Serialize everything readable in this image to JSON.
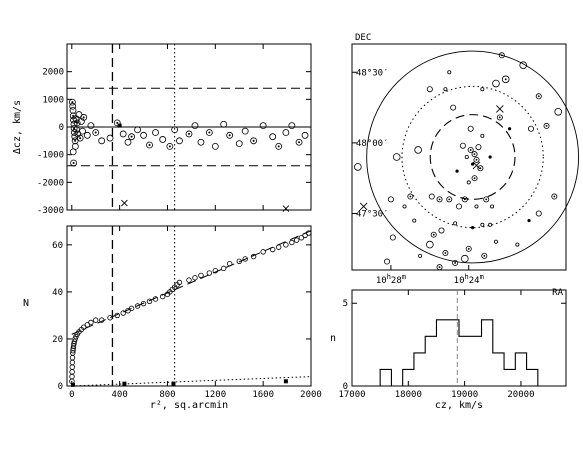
{
  "chart_data": [
    {
      "panel": "velocity-offset-vs-radius",
      "type": "scatter",
      "ylabel": "Δcz, km/s",
      "xlim": [
        -40,
        2000
      ],
      "ylim": [
        -3000,
        3000
      ],
      "y_ticks": [
        "2000",
        "1000",
        "0",
        "-1000",
        "-2000",
        "-3000"
      ],
      "y_tick_values": [
        2000,
        1000,
        0,
        -1000,
        -2000,
        -3000
      ],
      "x_tick_values": [
        0,
        400,
        800,
        1200,
        1600,
        2000
      ],
      "hlines_dashed": [
        1400,
        -1400
      ],
      "hline_solid": 0,
      "vline_dashed": 340,
      "vline_dotted": 860,
      "members": [
        {
          "x": 5,
          "y": 900
        },
        {
          "x": 8,
          "y": 750
        },
        {
          "x": 10,
          "y": 600
        },
        {
          "x": 12,
          "y": 400
        },
        {
          "x": 15,
          "y": 250
        },
        {
          "x": 18,
          "y": 100
        },
        {
          "x": 20,
          "y": -50
        },
        {
          "x": 22,
          "y": -200
        },
        {
          "x": 25,
          "y": -350
        },
        {
          "x": 28,
          "y": -500
        },
        {
          "x": 30,
          "y": -700
        },
        {
          "x": 12,
          "y": -900
        },
        {
          "x": 15,
          "y": -1300
        },
        {
          "x": 35,
          "y": 300
        },
        {
          "x": 40,
          "y": -100
        },
        {
          "x": 45,
          "y": 150
        },
        {
          "x": 50,
          "y": -250
        },
        {
          "x": 60,
          "y": 450
        },
        {
          "x": 70,
          "y": -400
        },
        {
          "x": 80,
          "y": 200
        },
        {
          "x": 90,
          "y": -150
        },
        {
          "x": 100,
          "y": 350
        },
        {
          "x": 130,
          "y": -300
        },
        {
          "x": 160,
          "y": 50
        },
        {
          "x": 200,
          "y": -200
        },
        {
          "x": 250,
          "y": -500
        },
        {
          "x": 320,
          "y": -400
        },
        {
          "x": 380,
          "y": 150
        },
        {
          "x": 430,
          "y": -250
        },
        {
          "x": 470,
          "y": -550
        },
        {
          "x": 500,
          "y": -350
        },
        {
          "x": 550,
          "y": -100
        },
        {
          "x": 600,
          "y": -300
        },
        {
          "x": 650,
          "y": -650
        },
        {
          "x": 700,
          "y": -200
        },
        {
          "x": 760,
          "y": -450
        },
        {
          "x": 820,
          "y": -700
        },
        {
          "x": 860,
          "y": -100
        },
        {
          "x": 900,
          "y": -500
        },
        {
          "x": 980,
          "y": -250
        },
        {
          "x": 1030,
          "y": 50
        },
        {
          "x": 1080,
          "y": -550
        },
        {
          "x": 1150,
          "y": -200
        },
        {
          "x": 1200,
          "y": -700
        },
        {
          "x": 1270,
          "y": 100
        },
        {
          "x": 1320,
          "y": -300
        },
        {
          "x": 1400,
          "y": -600
        },
        {
          "x": 1450,
          "y": -150
        },
        {
          "x": 1520,
          "y": -500
        },
        {
          "x": 1600,
          "y": 50
        },
        {
          "x": 1680,
          "y": -350
        },
        {
          "x": 1730,
          "y": -700
        },
        {
          "x": 1790,
          "y": -200
        },
        {
          "x": 1840,
          "y": 50
        },
        {
          "x": 1900,
          "y": -550
        },
        {
          "x": 1950,
          "y": -300
        }
      ],
      "nonmembers": [
        {
          "x": 440,
          "y": -2750
        },
        {
          "x": 1790,
          "y": -2950
        }
      ],
      "filled_points": [
        {
          "x": 400,
          "y": 50
        }
      ]
    },
    {
      "panel": "cumulative-count-vs-radius",
      "type": "line",
      "xlabel": "r², sq.arcmin",
      "ylabel": "N",
      "xlim": [
        -40,
        2000
      ],
      "ylim": [
        0,
        68
      ],
      "x_ticks": [
        "0",
        "400",
        "800",
        "1200",
        "1600",
        "2000"
      ],
      "x_tick_values": [
        0,
        400,
        800,
        1200,
        1600,
        2000
      ],
      "y_ticks": [
        "0",
        "20",
        "40",
        "60"
      ],
      "y_tick_values": [
        0,
        20,
        40,
        60
      ],
      "vline_dashed": 340,
      "vline_dotted": 860,
      "fit_line": {
        "x": [
          0,
          2000
        ],
        "y": [
          22,
          66
        ]
      },
      "background_line": {
        "x": [
          0,
          2000
        ],
        "y": [
          0,
          4
        ]
      },
      "members": [
        {
          "x": 1,
          "y": 2
        },
        {
          "x": 2,
          "y": 4
        },
        {
          "x": 3,
          "y": 6
        },
        {
          "x": 4,
          "y": 8
        },
        {
          "x": 5,
          "y": 10
        },
        {
          "x": 6,
          "y": 12
        },
        {
          "x": 8,
          "y": 14
        },
        {
          "x": 10,
          "y": 15
        },
        {
          "x": 12,
          "y": 16
        },
        {
          "x": 15,
          "y": 17
        },
        {
          "x": 18,
          "y": 18
        },
        {
          "x": 22,
          "y": 19
        },
        {
          "x": 28,
          "y": 20
        },
        {
          "x": 35,
          "y": 21
        },
        {
          "x": 45,
          "y": 22
        },
        {
          "x": 60,
          "y": 23
        },
        {
          "x": 80,
          "y": 24
        },
        {
          "x": 100,
          "y": 25
        },
        {
          "x": 130,
          "y": 26
        },
        {
          "x": 160,
          "y": 27
        },
        {
          "x": 200,
          "y": 28
        },
        {
          "x": 250,
          "y": 28
        },
        {
          "x": 320,
          "y": 29
        },
        {
          "x": 380,
          "y": 30
        },
        {
          "x": 430,
          "y": 31
        },
        {
          "x": 470,
          "y": 32
        },
        {
          "x": 500,
          "y": 33
        },
        {
          "x": 550,
          "y": 34
        },
        {
          "x": 600,
          "y": 35
        },
        {
          "x": 650,
          "y": 36
        },
        {
          "x": 700,
          "y": 37
        },
        {
          "x": 760,
          "y": 38
        },
        {
          "x": 800,
          "y": 39
        },
        {
          "x": 820,
          "y": 40
        },
        {
          "x": 840,
          "y": 41
        },
        {
          "x": 860,
          "y": 42
        },
        {
          "x": 880,
          "y": 43
        },
        {
          "x": 900,
          "y": 44
        },
        {
          "x": 980,
          "y": 45
        },
        {
          "x": 1030,
          "y": 46
        },
        {
          "x": 1080,
          "y": 47
        },
        {
          "x": 1150,
          "y": 48
        },
        {
          "x": 1200,
          "y": 49
        },
        {
          "x": 1270,
          "y": 50
        },
        {
          "x": 1320,
          "y": 52
        },
        {
          "x": 1400,
          "y": 53
        },
        {
          "x": 1450,
          "y": 54
        },
        {
          "x": 1520,
          "y": 55
        },
        {
          "x": 1600,
          "y": 57
        },
        {
          "x": 1680,
          "y": 58
        },
        {
          "x": 1730,
          "y": 59
        },
        {
          "x": 1790,
          "y": 60
        },
        {
          "x": 1840,
          "y": 61
        },
        {
          "x": 1880,
          "y": 62
        },
        {
          "x": 1920,
          "y": 63
        },
        {
          "x": 1950,
          "y": 64
        },
        {
          "x": 1980,
          "y": 65
        }
      ],
      "background_markers": [
        {
          "x": 10,
          "y": 0.5
        },
        {
          "x": 440,
          "y": 1
        },
        {
          "x": 850,
          "y": 1
        },
        {
          "x": 1790,
          "y": 2
        }
      ]
    },
    {
      "panel": "sky-map",
      "type": "scatter",
      "xlabel": "RA",
      "ylabel": "DEC",
      "dec_ticks": [
        "48°30′",
        "48°00′",
        "47°30′"
      ],
      "dec_tick_values": [
        48.5,
        48.0,
        47.5
      ],
      "ra_ticks": [
        {
          "hours": "10",
          "h": "h",
          "minutes": "28",
          "m": "m"
        },
        {
          "hours": "10",
          "h": "h",
          "minutes": "24",
          "m": "m"
        }
      ],
      "ra_tick_values": [
        28,
        24
      ],
      "center": {
        "ra_min": 23.8,
        "dec": 47.9
      },
      "circle_radii_deg": {
        "solid": 0.75,
        "dotted": 0.5,
        "dashed": 0.3
      },
      "ra_range_min": [
        30,
        19
      ],
      "dec_range": [
        47.1,
        48.7
      ],
      "galaxies": [
        {
          "ra": 23.7,
          "dec": 47.92,
          "kind": "ringed",
          "size": 2
        },
        {
          "ra": 23.6,
          "dec": 47.88,
          "kind": "ringed",
          "size": 2
        },
        {
          "ra": 23.9,
          "dec": 47.95,
          "kind": "ringed",
          "size": 2
        },
        {
          "ra": 23.5,
          "dec": 47.97,
          "kind": "open",
          "size": 2
        },
        {
          "ra": 23.8,
          "dec": 47.85,
          "kind": "filled",
          "size": 1
        },
        {
          "ra": 24.1,
          "dec": 47.9,
          "kind": "open",
          "size": 1
        },
        {
          "ra": 23.4,
          "dec": 47.82,
          "kind": "ringed",
          "size": 2
        },
        {
          "ra": 24.3,
          "dec": 47.98,
          "kind": "open",
          "size": 2
        },
        {
          "ra": 23.7,
          "dec": 47.75,
          "kind": "ringed",
          "size": 2
        },
        {
          "ra": 24.0,
          "dec": 47.72,
          "kind": "open",
          "size": 1
        },
        {
          "ra": 23.9,
          "dec": 48.1,
          "kind": "open",
          "size": 2
        },
        {
          "ra": 23.3,
          "dec": 48.05,
          "kind": "open",
          "size": 1
        },
        {
          "ra": 24.6,
          "dec": 47.8,
          "kind": "filled",
          "size": 1
        },
        {
          "ra": 22.9,
          "dec": 47.9,
          "kind": "filled",
          "size": 1
        },
        {
          "ra": 24.8,
          "dec": 48.25,
          "kind": "open",
          "size": 2
        },
        {
          "ra": 22.6,
          "dec": 48.42,
          "kind": "open",
          "size": 3
        },
        {
          "ra": 22.1,
          "dec": 48.45,
          "kind": "ringed",
          "size": 3
        },
        {
          "ra": 23.3,
          "dec": 48.38,
          "kind": "open",
          "size": 1
        },
        {
          "ra": 25.2,
          "dec": 48.38,
          "kind": "open",
          "size": 1
        },
        {
          "ra": 22.4,
          "dec": 48.18,
          "kind": "ringed",
          "size": 2
        },
        {
          "ra": 21.9,
          "dec": 48.1,
          "kind": "filled",
          "size": 1
        },
        {
          "ra": 20.8,
          "dec": 48.1,
          "kind": "open",
          "size": 2
        },
        {
          "ra": 26.6,
          "dec": 47.95,
          "kind": "open",
          "size": 3
        },
        {
          "ra": 25.9,
          "dec": 47.62,
          "kind": "open",
          "size": 2
        },
        {
          "ra": 25.5,
          "dec": 47.6,
          "kind": "ringed",
          "size": 2
        },
        {
          "ra": 25.0,
          "dec": 47.6,
          "kind": "ringed",
          "size": 2
        },
        {
          "ra": 24.2,
          "dec": 47.6,
          "kind": "ringed",
          "size": 2
        },
        {
          "ra": 24.5,
          "dec": 47.55,
          "kind": "open",
          "size": 2
        },
        {
          "ra": 23.1,
          "dec": 47.6,
          "kind": "ringed",
          "size": 2
        },
        {
          "ra": 22.8,
          "dec": 47.55,
          "kind": "open",
          "size": 1
        },
        {
          "ra": 23.6,
          "dec": 47.55,
          "kind": "open",
          "size": 1
        },
        {
          "ra": 25.4,
          "dec": 47.38,
          "kind": "open",
          "size": 2
        },
        {
          "ra": 25.8,
          "dec": 47.35,
          "kind": "ringed",
          "size": 2
        },
        {
          "ra": 24.7,
          "dec": 47.43,
          "kind": "open",
          "size": 1
        },
        {
          "ra": 23.8,
          "dec": 47.4,
          "kind": "filled",
          "size": 1
        },
        {
          "ra": 23.3,
          "dec": 47.42,
          "kind": "open",
          "size": 1
        },
        {
          "ra": 22.9,
          "dec": 47.42,
          "kind": "open",
          "size": 1
        },
        {
          "ra": 25.2,
          "dec": 47.22,
          "kind": "ringed",
          "size": 2
        },
        {
          "ra": 24.7,
          "dec": 47.15,
          "kind": "ringed",
          "size": 2
        },
        {
          "ra": 24.0,
          "dec": 47.25,
          "kind": "ringed",
          "size": 2
        },
        {
          "ra": 24.2,
          "dec": 47.18,
          "kind": "open",
          "size": 3
        },
        {
          "ra": 26.0,
          "dec": 47.28,
          "kind": "open",
          "size": 3
        },
        {
          "ra": 25.5,
          "dec": 47.12,
          "kind": "ringed",
          "size": 2
        },
        {
          "ra": 23.2,
          "dec": 47.2,
          "kind": "ringed",
          "size": 2
        },
        {
          "ra": 22.6,
          "dec": 47.3,
          "kind": "open",
          "size": 1
        },
        {
          "ra": 26.5,
          "dec": 47.2,
          "kind": "open",
          "size": 1
        },
        {
          "ra": 27.7,
          "dec": 47.9,
          "kind": "open",
          "size": 3
        },
        {
          "ra": 28.0,
          "dec": 47.6,
          "kind": "open",
          "size": 2
        },
        {
          "ra": 27.3,
          "dec": 47.55,
          "kind": "open",
          "size": 1
        },
        {
          "ra": 27.0,
          "dec": 47.62,
          "kind": "ringed",
          "size": 2
        },
        {
          "ra": 26.8,
          "dec": 47.45,
          "kind": "open",
          "size": 1
        },
        {
          "ra": 27.9,
          "dec": 47.33,
          "kind": "open",
          "size": 2
        },
        {
          "ra": 20.4,
          "dec": 48.33,
          "kind": "ringed",
          "size": 2
        },
        {
          "ra": 20.0,
          "dec": 48.12,
          "kind": "ringed",
          "size": 2
        },
        {
          "ra": 19.4,
          "dec": 48.22,
          "kind": "open",
          "size": 3
        },
        {
          "ra": 21.2,
          "dec": 48.55,
          "kind": "open",
          "size": 3
        },
        {
          "ra": 22.3,
          "dec": 48.62,
          "kind": "ringed",
          "size": 2
        },
        {
          "ra": 26.0,
          "dec": 48.38,
          "kind": "open",
          "size": 2
        },
        {
          "ra": 25.0,
          "dec": 48.5,
          "kind": "open",
          "size": 1
        },
        {
          "ra": 29.7,
          "dec": 47.83,
          "kind": "open",
          "size": 3
        },
        {
          "ra": 28.2,
          "dec": 47.16,
          "kind": "open",
          "size": 2
        },
        {
          "ra": 20.4,
          "dec": 47.5,
          "kind": "open",
          "size": 2
        },
        {
          "ra": 19.6,
          "dec": 47.62,
          "kind": "ringed",
          "size": 2
        },
        {
          "ra": 21.5,
          "dec": 47.28,
          "kind": "open",
          "size": 1
        },
        {
          "ra": 20.9,
          "dec": 47.45,
          "kind": "filled",
          "size": 1
        }
      ],
      "crosses": [
        {
          "ra": 22.4,
          "dec": 48.24
        },
        {
          "ra": 29.4,
          "dec": 47.55
        },
        {
          "ra": 23.6,
          "dec": 47.84
        }
      ]
    },
    {
      "panel": "velocity-histogram",
      "type": "bar",
      "xlabel": "cz, km/s",
      "ylabel": "n",
      "xlim": [
        17000,
        20800
      ],
      "ylim": [
        0,
        5.8
      ],
      "x_ticks": [
        "17000",
        "18000",
        "19000",
        "20000"
      ],
      "x_tick_values": [
        17000,
        18000,
        19000,
        20000
      ],
      "y_ticks": [
        "0",
        "5"
      ],
      "y_tick_values": [
        0,
        5
      ],
      "bin_edges": [
        17300,
        17500,
        17700,
        17900,
        18100,
        18300,
        18500,
        18700,
        18900,
        19100,
        19300,
        19500,
        19700,
        19900,
        20100,
        20300
      ],
      "counts": [
        0,
        1,
        0,
        1,
        2,
        3,
        4,
        4,
        3,
        3,
        4,
        2,
        1,
        2,
        1
      ],
      "mean_line": 18870
    }
  ]
}
